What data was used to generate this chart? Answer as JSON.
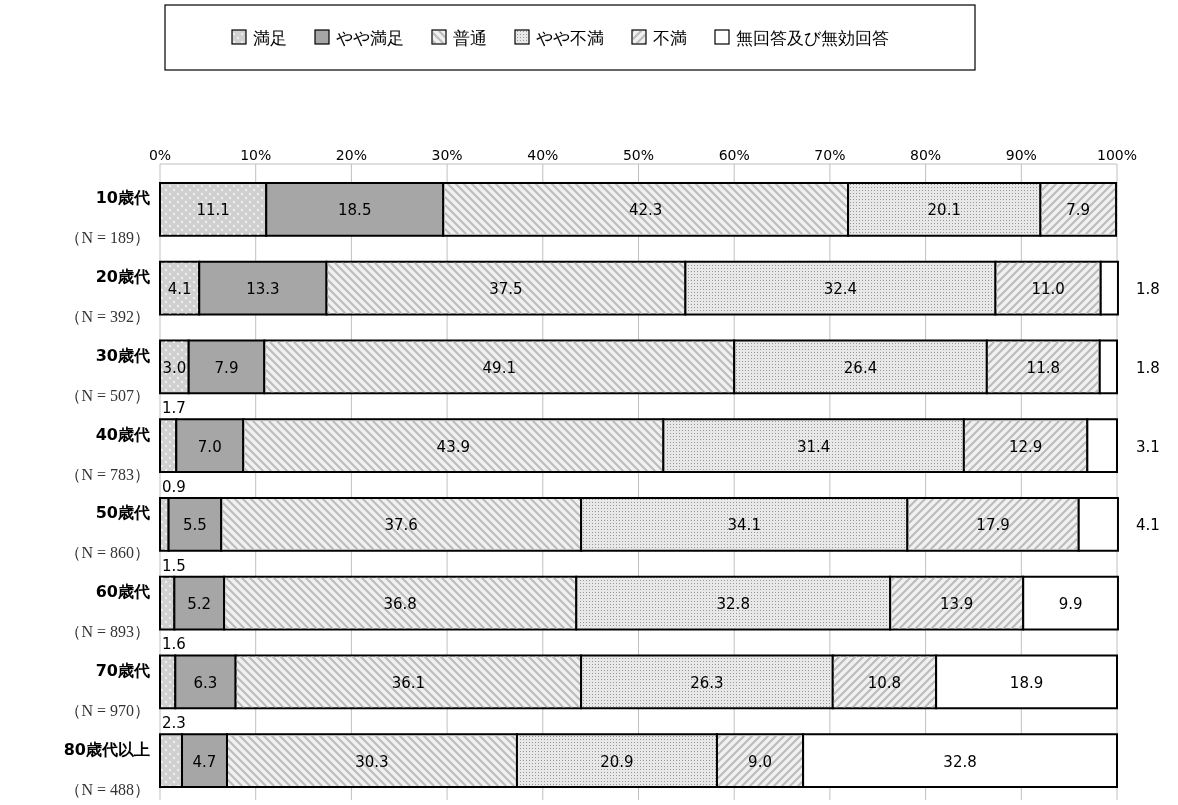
{
  "chart_data": {
    "type": "bar",
    "orientation": "horizontal",
    "stacked": true,
    "grid": "x",
    "legend": "top",
    "categories": [
      "10歳代（N = 189）",
      "20歳代（N = 392）",
      "30歳代（N = 507）",
      "40歳代（N = 783）",
      "50歳代（N = 860）",
      "60歳代（N = 893）",
      "70歳代（N = 970）",
      "80歳代以上（N = 488）"
    ],
    "xlim": [
      0,
      100
    ],
    "xticks": [
      {
        "value": 0,
        "label": "0%"
      },
      {
        "value": 10,
        "label": "10%"
      },
      {
        "value": 20,
        "label": "20%"
      },
      {
        "value": 30,
        "label": "30%"
      },
      {
        "value": 40,
        "label": "40%"
      },
      {
        "value": 50,
        "label": "50%"
      },
      {
        "value": 60,
        "label": "60%"
      },
      {
        "value": 70,
        "label": "70%"
      },
      {
        "value": 80,
        "label": "80%"
      },
      {
        "value": 90,
        "label": "90%"
      },
      {
        "value": 100,
        "label": "100%"
      }
    ],
    "series": [
      {
        "name": "満足",
        "color": "#d0d0d0",
        "values": [
          11.1,
          4.1,
          3.0,
          1.7,
          0.9,
          1.5,
          1.6,
          2.3
        ],
        "value_labels": [
          "11.1",
          "4.1",
          "3.0",
          "1.7",
          "0.9",
          "1.5",
          "1.6",
          "2.3"
        ]
      },
      {
        "name": "やや満足",
        "color": "#a6a6a6",
        "values": [
          18.5,
          13.3,
          7.9,
          7.0,
          5.5,
          5.2,
          6.3,
          4.7
        ],
        "value_labels": [
          "18.5",
          "13.3",
          "7.9",
          "7.0",
          "5.5",
          "5.2",
          "6.3",
          "4.7"
        ]
      },
      {
        "name": "普通",
        "color": "#f0f0f0",
        "values": [
          42.3,
          37.5,
          49.1,
          43.9,
          37.6,
          36.8,
          36.1,
          30.3
        ],
        "value_labels": [
          "42.3",
          "37.5",
          "49.1",
          "43.9",
          "37.6",
          "36.8",
          "36.1",
          "30.3"
        ]
      },
      {
        "name": "やや不満",
        "color": "#e8e8e8",
        "values": [
          20.1,
          32.4,
          26.4,
          31.4,
          34.1,
          32.8,
          26.3,
          20.9
        ],
        "value_labels": [
          "20.1",
          "32.4",
          "26.4",
          "31.4",
          "34.1",
          "32.8",
          "26.3",
          "20.9"
        ]
      },
      {
        "name": "不満",
        "color": "#f0f0f0",
        "values": [
          7.9,
          11.0,
          11.8,
          12.9,
          17.9,
          13.9,
          10.8,
          9.0
        ],
        "value_labels": [
          "7.9",
          "11.0",
          "11.8",
          "12.9",
          "17.9",
          "13.9",
          "10.8",
          "9.0"
        ]
      },
      {
        "name": "無回答及び無効回答",
        "color": "#ffffff",
        "values": [
          null,
          1.8,
          1.8,
          3.1,
          4.1,
          9.9,
          18.9,
          32.8
        ],
        "value_labels": [
          null,
          "1.8",
          "1.8",
          "3.1",
          "4.1",
          "9.9",
          "18.9",
          "32.8"
        ]
      }
    ]
  }
}
